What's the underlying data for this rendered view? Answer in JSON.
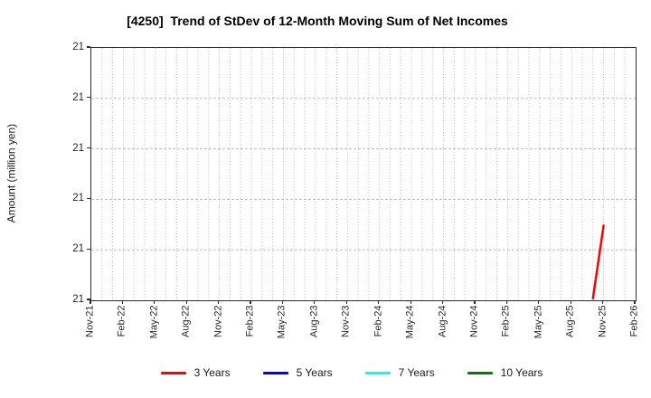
{
  "chart_data": {
    "type": "line",
    "title": "[4250]  Trend of StDev of 12-Month Moving Sum of Net Incomes",
    "ylabel": "Amount (million yen)",
    "xlabel": "",
    "grid": true,
    "x_axis": {
      "total_months": 51,
      "tick_step_months": 3,
      "tick_labels": [
        "Nov-21",
        "Feb-22",
        "May-22",
        "Aug-22",
        "Nov-22",
        "Feb-23",
        "May-23",
        "Aug-23",
        "Nov-23",
        "Feb-24",
        "May-24",
        "Aug-24",
        "Nov-24",
        "Feb-25",
        "May-25",
        "Aug-25",
        "Nov-25",
        "Feb-26"
      ]
    },
    "y_axis": {
      "tick_labels": [
        "21",
        "21",
        "21",
        "21",
        "21",
        "21"
      ],
      "note_display_value": "21"
    },
    "legend_position": "bottom",
    "series": [
      {
        "name": "3 Years",
        "color": "#ff0000",
        "points": [
          {
            "x": "Oct-25",
            "month_index": 47,
            "y_value_approx": 21.0,
            "y_axis_fraction": 0.008
          },
          {
            "x": "Nov-25",
            "month_index": 48,
            "y_value_approx": 21.3,
            "y_axis_fraction": 0.296
          }
        ]
      },
      {
        "name": "5 Years",
        "color": "#0000ff",
        "points": []
      },
      {
        "name": "7 Years",
        "color": "#00ffff",
        "points": []
      },
      {
        "name": "10 Years",
        "color": "#008000",
        "points": []
      }
    ]
  }
}
